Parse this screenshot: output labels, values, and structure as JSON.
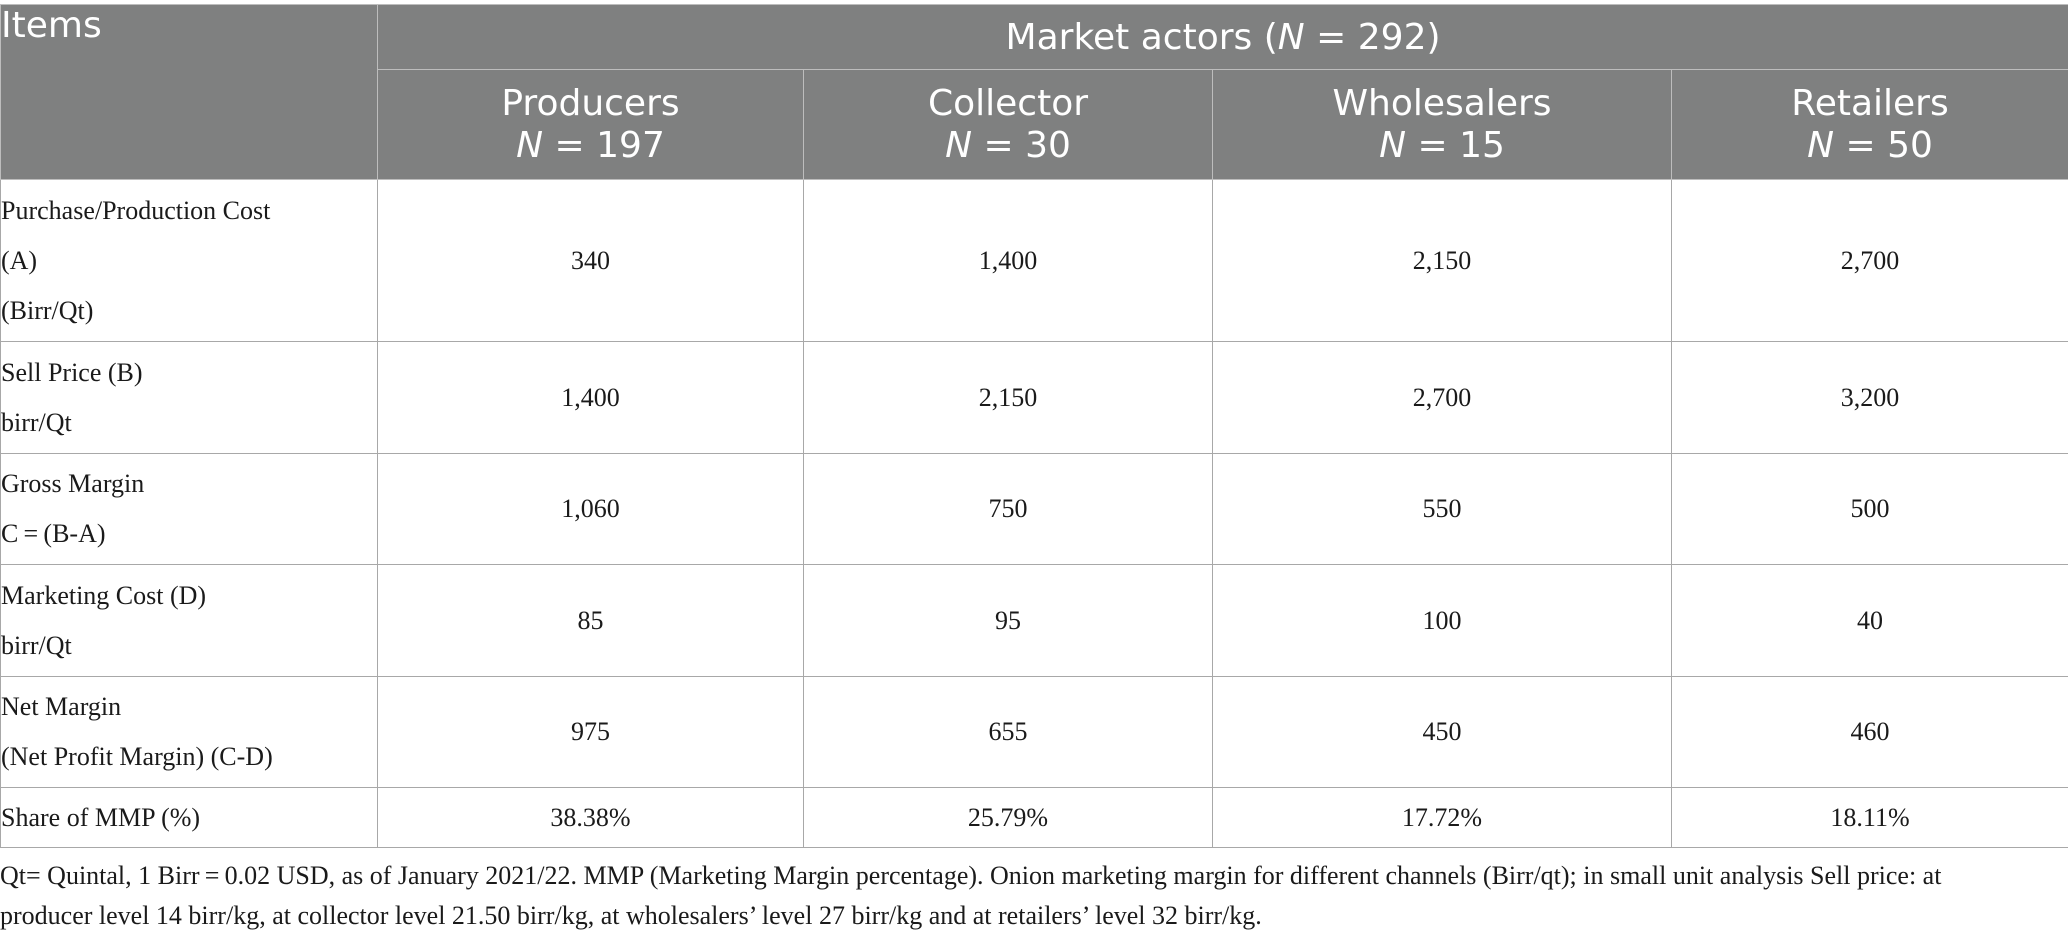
{
  "table": {
    "items_header": "Items",
    "group_header_prefix": "Market actors (",
    "group_header_n": "N",
    "group_header_suffix": " = 292)",
    "columns": [
      {
        "name": "Producers",
        "n_label": "N",
        "n_value": " = 197"
      },
      {
        "name": "Collector",
        "n_label": "N",
        "n_value": " = 30"
      },
      {
        "name": "Wholesalers",
        "n_label": "N",
        "n_value": " = 15"
      },
      {
        "name": "Retailers",
        "n_label": "N",
        "n_value": " = 50"
      }
    ],
    "rows": [
      {
        "label": [
          "Purchase/Production Cost",
          "(A)",
          "(Birr/Qt)"
        ],
        "values": [
          "340",
          "1,400",
          "2,150",
          "2,700"
        ]
      },
      {
        "label": [
          "Sell Price (B)",
          "birr/Qt"
        ],
        "values": [
          "1,400",
          "2,150",
          "2,700",
          "3,200"
        ]
      },
      {
        "label": [
          "Gross Margin",
          "C = (B-A)"
        ],
        "values": [
          "1,060",
          "750",
          "550",
          "500"
        ]
      },
      {
        "label": [
          "Marketing Cost (D)",
          "birr/Qt"
        ],
        "values": [
          "85",
          "95",
          "100",
          "40"
        ]
      },
      {
        "label": [
          "Net Margin",
          "(Net Profit Margin) (C-D)"
        ],
        "values": [
          "975",
          "655",
          "450",
          "460"
        ]
      },
      {
        "label": [
          "Share of MMP (%)"
        ],
        "values": [
          "38.38%",
          "25.79%",
          "17.72%",
          "18.11%"
        ]
      }
    ]
  },
  "footnote": "Qt= Quintal, 1 Birr = 0.02 USD, as of January 2021/22. MMP (Marketing Margin percentage). Onion marketing margin for different channels (Birr/qt); in small unit analysis Sell price: at producer level 14 birr/kg, at collector level 21.50 birr/kg, at wholesalers’ level 27 birr/kg and at retailers’ level 32 birr/kg."
}
